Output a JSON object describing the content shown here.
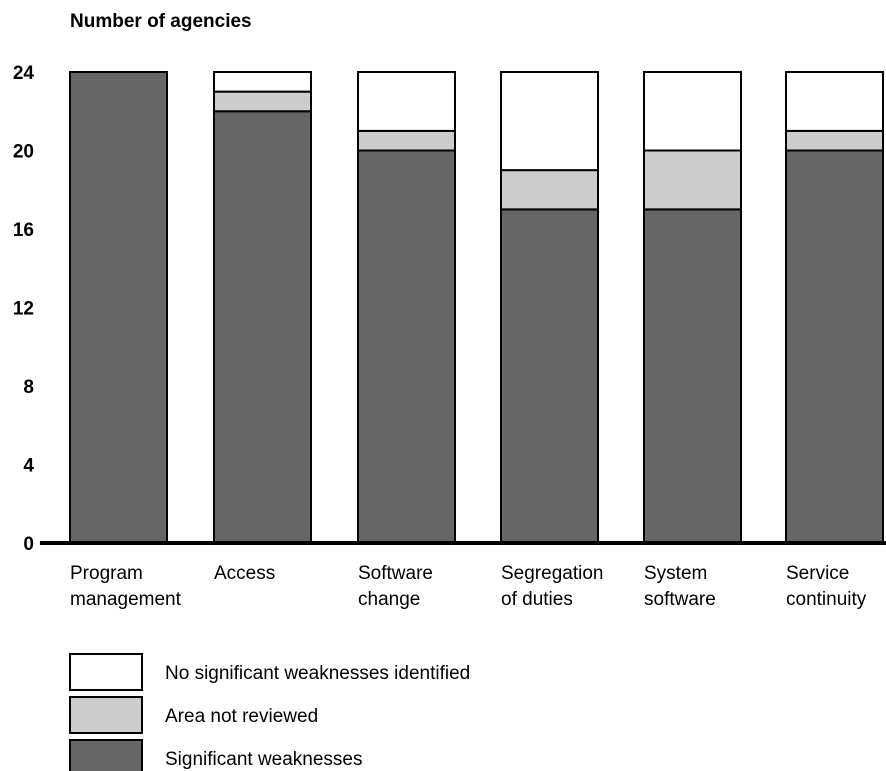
{
  "chart_data": {
    "type": "bar",
    "stacked": true,
    "ylabel": "Number of agencies",
    "xlabel": "",
    "ylim": [
      0,
      24
    ],
    "yticks": [
      0,
      4,
      8,
      12,
      16,
      20,
      24
    ],
    "grid": false,
    "legend_placement": "bottom-left",
    "categories": [
      [
        "Program",
        "management"
      ],
      [
        "Access"
      ],
      [
        "Software",
        "change"
      ],
      [
        "Segregation",
        "of duties"
      ],
      [
        "System",
        "software"
      ],
      [
        "Service",
        "continuity"
      ]
    ],
    "series": [
      {
        "name": "Significant weaknesses",
        "color": "#666666",
        "values": [
          24,
          22,
          20,
          17,
          17,
          20
        ]
      },
      {
        "name": "Area not reviewed",
        "color": "#cccccc",
        "values": [
          0,
          1,
          1,
          2,
          3,
          1
        ]
      },
      {
        "name": "No significant weaknesses identified",
        "color": "#ffffff",
        "values": [
          0,
          1,
          3,
          5,
          4,
          3
        ]
      }
    ],
    "legend_order": [
      2,
      1,
      0
    ]
  }
}
